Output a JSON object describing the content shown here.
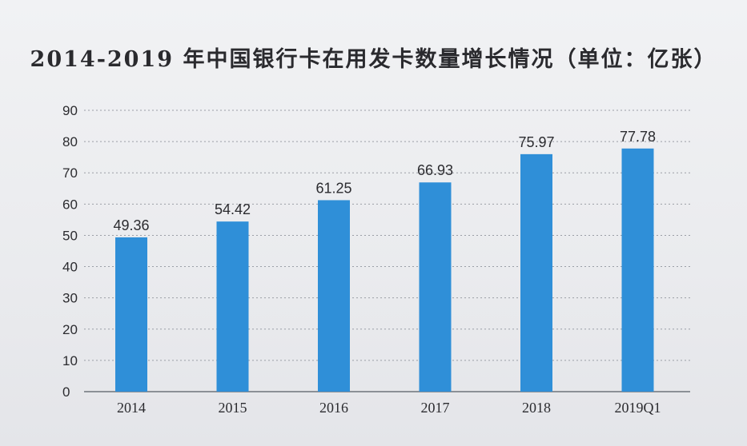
{
  "chart_data": {
    "type": "bar",
    "title": "2014-2019 年中国银行卡在用发卡数量增长情况（单位：亿张）",
    "xlabel": "",
    "ylabel": "",
    "categories": [
      "2014",
      "2015",
      "2016",
      "2017",
      "2018",
      "2019Q1"
    ],
    "series": [
      {
        "values": [
          49.36,
          54.42,
          61.25,
          66.93,
          75.97,
          77.78
        ]
      }
    ],
    "data_labels": [
      "49.36",
      "54.42",
      "61.25",
      "66.93",
      "75.97",
      "77.78"
    ],
    "ylim": [
      0,
      90
    ],
    "yticks": [
      "0",
      "10",
      "20",
      "30",
      "40",
      "50",
      "60",
      "70",
      "80",
      "90"
    ],
    "grid": "dotted-horizontal",
    "legend": "none",
    "colors": {
      "bar": "#2f8fd8",
      "grid": "#9a9ea6",
      "axis": "#6f737a",
      "text": "#2b2b2f"
    }
  }
}
